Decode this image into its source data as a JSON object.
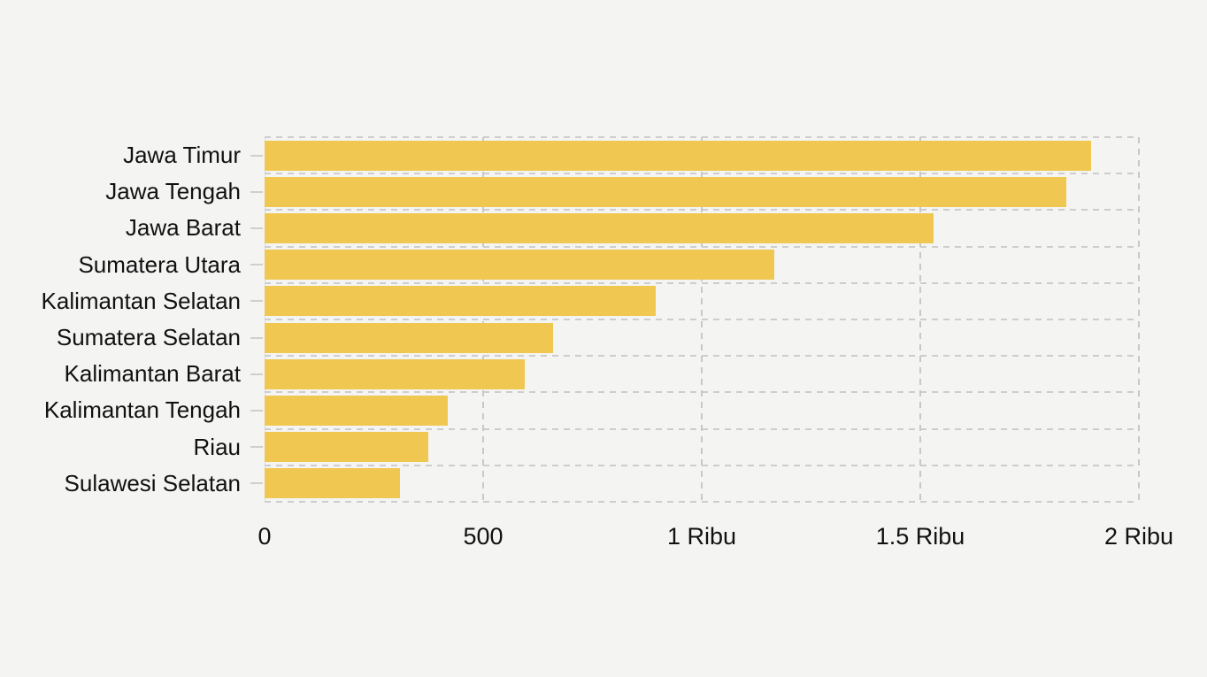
{
  "chart_data": {
    "type": "bar",
    "orientation": "horizontal",
    "title": "",
    "xlabel": "",
    "ylabel": "",
    "unit_word": "Ribu",
    "categories": [
      "Jawa Timur",
      "Jawa Tengah",
      "Jawa Barat",
      "Sumatera Utara",
      "Kalimantan Selatan",
      "Sumatera Selatan",
      "Kalimantan Barat",
      "Kalimantan Tengah",
      "Riau",
      "Sulawesi Selatan"
    ],
    "values": [
      1890,
      1835,
      1530,
      1165,
      895,
      660,
      595,
      420,
      375,
      310
    ],
    "xlim": [
      0,
      2000
    ],
    "xticks": [
      {
        "value": 0,
        "label": "0"
      },
      {
        "value": 500,
        "label": "500"
      },
      {
        "value": 1000,
        "label": "1 Ribu"
      },
      {
        "value": 1500,
        "label": "1.5 Ribu"
      },
      {
        "value": 2000,
        "label": "2 Ribu"
      }
    ],
    "legend": "none",
    "grid": {
      "style": "dashed",
      "horizontal": "band-boundaries",
      "vertical": "at-xticks"
    },
    "colors": {
      "bar": "#EFC751",
      "background": "#F4F4F3",
      "grid": "#CDCDCD",
      "tick": "#CFCFCF",
      "text": "#111111"
    }
  }
}
